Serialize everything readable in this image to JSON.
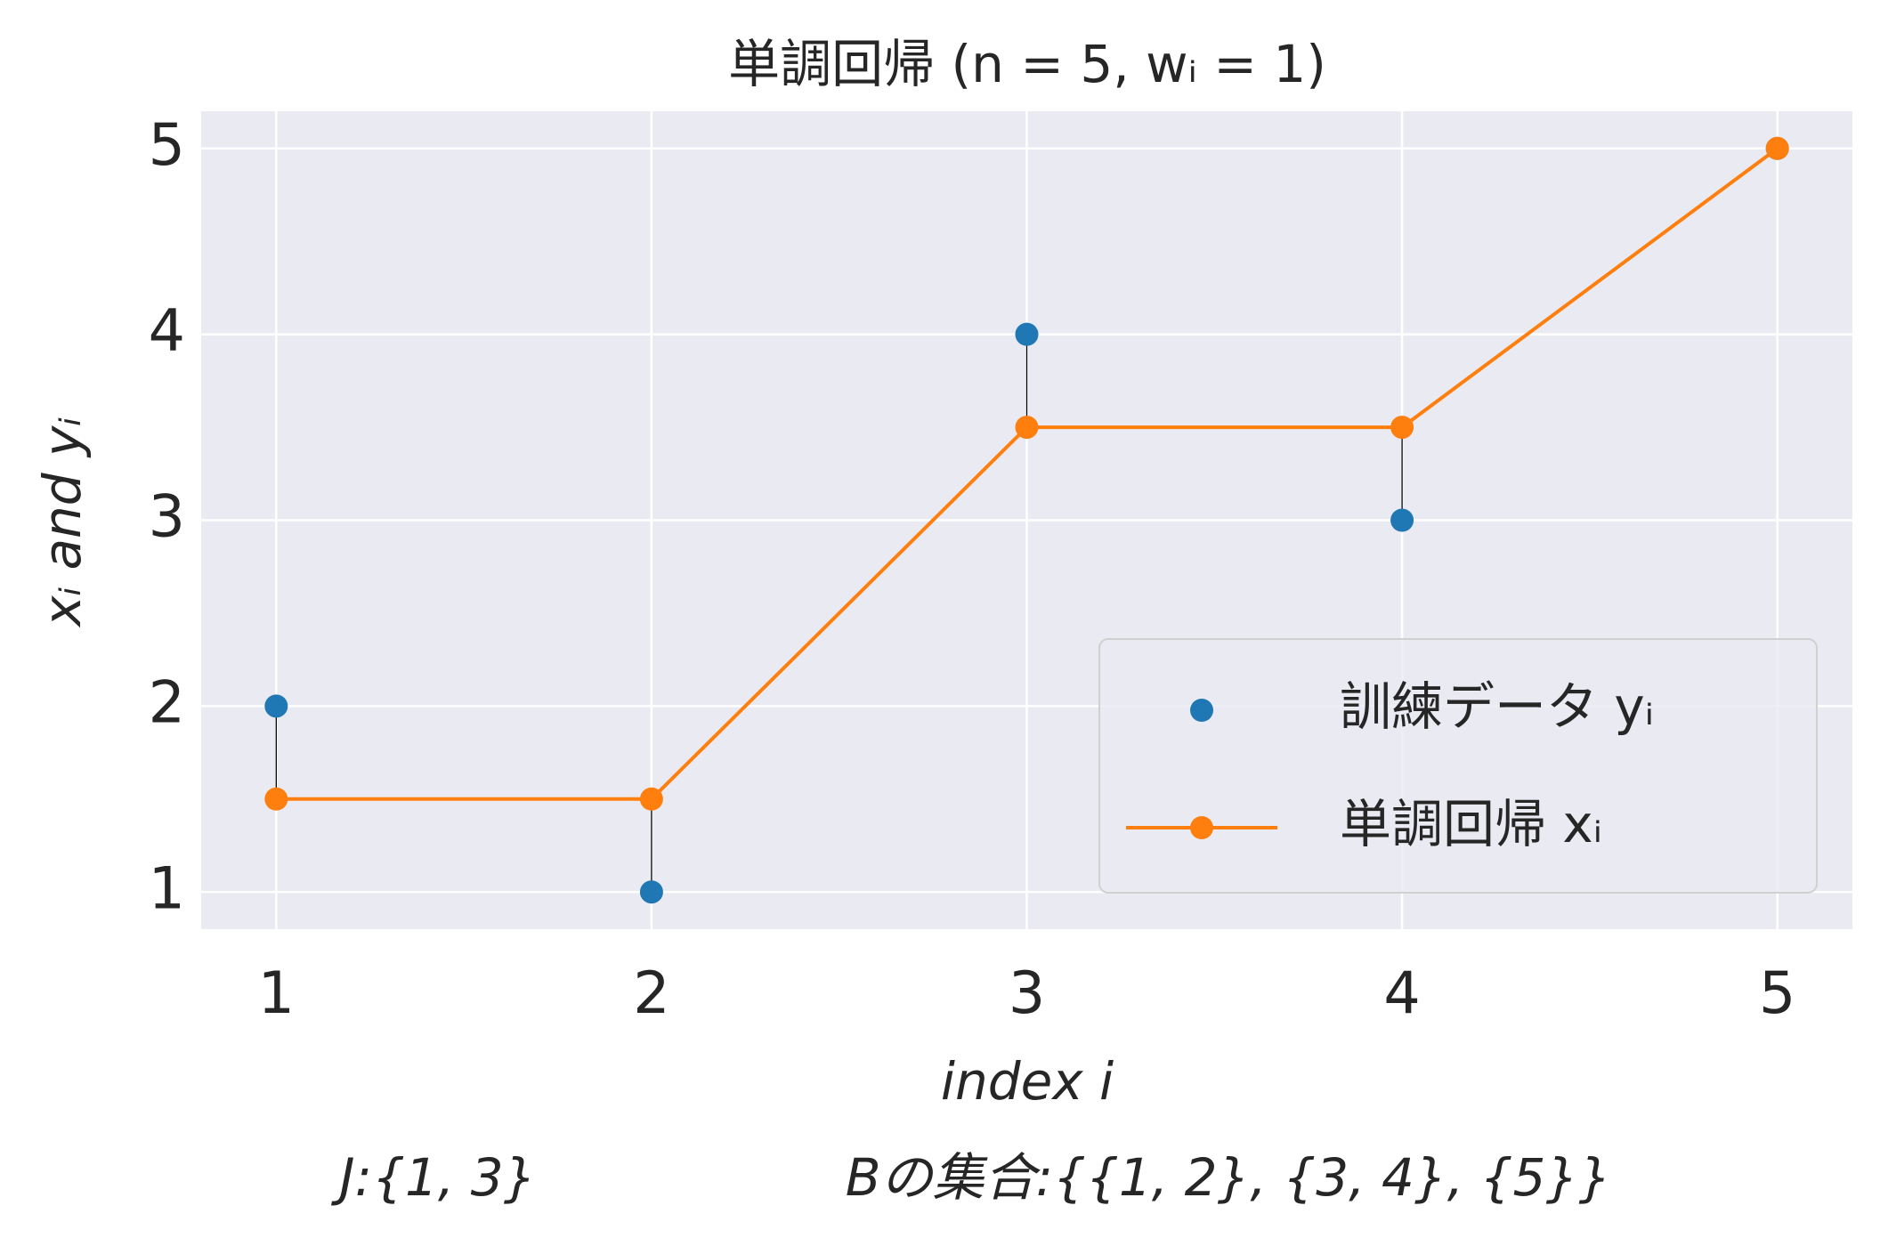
{
  "chart_data": {
    "type": "scatter",
    "title": "単調回帰 (n = 5, wᵢ = 1)",
    "x_label": "index i",
    "y_label": "xᵢ and yᵢ",
    "annotations": [
      "J:{1, 3}",
      "Bの集合:{{1, 2}, {3, 4}, {5}}"
    ],
    "x": [
      1,
      2,
      3,
      4,
      5
    ],
    "series": [
      {
        "name": "訓練データ yᵢ",
        "color": "#1f77b4",
        "values": [
          2,
          1,
          4,
          3,
          5
        ],
        "mode": "markers"
      },
      {
        "name": "単調回帰 xᵢ",
        "color": "#ff7f0e",
        "values": [
          1.5,
          1.5,
          3.5,
          3.5,
          5
        ],
        "mode": "lines+markers"
      }
    ],
    "residual_lines": true,
    "xlim": [
      0.8,
      5.2
    ],
    "ylim": [
      0.8,
      5.2
    ],
    "xticks": [
      1,
      2,
      3,
      4,
      5
    ],
    "yticks": [
      1,
      2,
      3,
      4,
      5
    ],
    "grid": true,
    "legend": "lower right"
  }
}
